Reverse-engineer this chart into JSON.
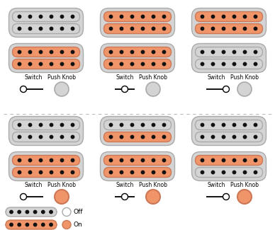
{
  "background": "#ffffff",
  "color_off": "#d4d4d4",
  "color_on": "#f0956a",
  "color_outline": "#aaaaaa",
  "color_on_outline": "#cc7755",
  "dot_color": "#111111",
  "num_dots": 6,
  "configs": [
    {
      "col": 0,
      "row": 0,
      "top_top": "off",
      "top_bot": "off",
      "bot_top": "on",
      "bot_bot": "on",
      "switch_pos": "left",
      "knob_on": false
    },
    {
      "col": 1,
      "row": 0,
      "top_top": "on",
      "top_bot": "on",
      "bot_top": "on",
      "bot_bot": "on",
      "switch_pos": "mid",
      "knob_on": false
    },
    {
      "col": 2,
      "row": 0,
      "top_top": "on",
      "top_bot": "on",
      "bot_top": "off",
      "bot_bot": "off",
      "switch_pos": "right",
      "knob_on": false
    },
    {
      "col": 0,
      "row": 1,
      "top_top": "off",
      "top_bot": "off",
      "bot_top": "on",
      "bot_bot": "on",
      "switch_pos": "left",
      "knob_on": true
    },
    {
      "col": 1,
      "row": 1,
      "top_top": "off",
      "top_bot": "on",
      "bot_top": "on",
      "bot_bot": "on",
      "switch_pos": "mid",
      "knob_on": true
    },
    {
      "col": 2,
      "row": 1,
      "top_top": "off",
      "top_bot": "off",
      "bot_top": "on",
      "bot_bot": "off",
      "switch_pos": "right",
      "knob_on": true
    }
  ],
  "switch_label": "Switch",
  "knob_label": "Push Knob"
}
